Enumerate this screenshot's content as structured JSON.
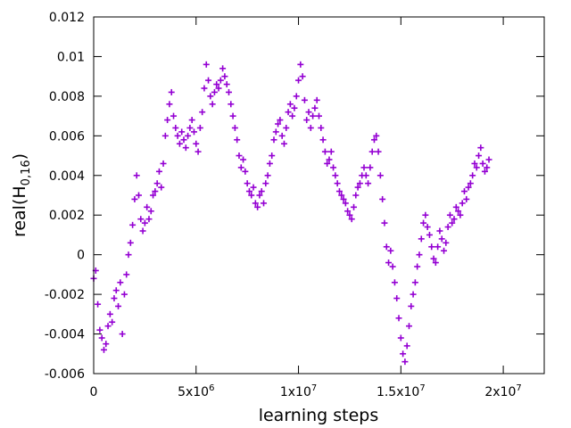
{
  "chart_data": {
    "type": "scatter",
    "title": "",
    "xlabel": "learning steps",
    "ylabel": {
      "main": "real(H",
      "subscript": "0,16",
      "close": ")"
    },
    "xlim": [
      0,
      22000000
    ],
    "ylim": [
      -0.006,
      0.012
    ],
    "x_ticks": [
      {
        "value": 0,
        "mantissa": "0",
        "exp": ""
      },
      {
        "value": 5000000,
        "mantissa": "5x10",
        "exp": "6"
      },
      {
        "value": 10000000,
        "mantissa": "1x10",
        "exp": "7"
      },
      {
        "value": 15000000,
        "mantissa": "1.5x10",
        "exp": "7"
      },
      {
        "value": 20000000,
        "mantissa": "2x10",
        "exp": "7"
      }
    ],
    "y_ticks": [
      {
        "value": -0.006,
        "label": "-0.006"
      },
      {
        "value": -0.004,
        "label": "-0.004"
      },
      {
        "value": -0.002,
        "label": "-0.002"
      },
      {
        "value": 0,
        "label": "0"
      },
      {
        "value": 0.002,
        "label": "0.002"
      },
      {
        "value": 0.004,
        "label": "0.004"
      },
      {
        "value": 0.006,
        "label": "0.006"
      },
      {
        "value": 0.008,
        "label": "0.008"
      },
      {
        "value": 0.01,
        "label": "0.01"
      },
      {
        "value": 0.012,
        "label": "0.012"
      }
    ],
    "grid": false,
    "marker": "plus",
    "series": [
      {
        "color": "#9400d3",
        "points": [
          [
            0,
            -0.0012
          ],
          [
            100000,
            -0.0008
          ],
          [
            200000,
            -0.0025
          ],
          [
            300000,
            -0.0038
          ],
          [
            400000,
            -0.0042
          ],
          [
            500000,
            -0.0048
          ],
          [
            600000,
            -0.0045
          ],
          [
            700000,
            -0.0036
          ],
          [
            800000,
            -0.003
          ],
          [
            900000,
            -0.0034
          ],
          [
            1000000,
            -0.0022
          ],
          [
            1100000,
            -0.0018
          ],
          [
            1200000,
            -0.0026
          ],
          [
            1300000,
            -0.0014
          ],
          [
            1400000,
            -0.004
          ],
          [
            1500000,
            -0.002
          ],
          [
            1600000,
            -0.001
          ],
          [
            1700000,
            0.0
          ],
          [
            1800000,
            0.0006
          ],
          [
            1900000,
            0.0015
          ],
          [
            2000000,
            0.0028
          ],
          [
            2100000,
            0.004
          ],
          [
            2200000,
            0.003
          ],
          [
            2300000,
            0.0018
          ],
          [
            2400000,
            0.0012
          ],
          [
            2500000,
            0.0016
          ],
          [
            2600000,
            0.0024
          ],
          [
            2700000,
            0.0018
          ],
          [
            2800000,
            0.0022
          ],
          [
            2900000,
            0.003
          ],
          [
            3000000,
            0.0032
          ],
          [
            3100000,
            0.0036
          ],
          [
            3200000,
            0.0042
          ],
          [
            3300000,
            0.0034
          ],
          [
            3400000,
            0.0046
          ],
          [
            3500000,
            0.006
          ],
          [
            3600000,
            0.0068
          ],
          [
            3700000,
            0.0076
          ],
          [
            3800000,
            0.0082
          ],
          [
            3900000,
            0.007
          ],
          [
            4000000,
            0.0064
          ],
          [
            4100000,
            0.006
          ],
          [
            4200000,
            0.0056
          ],
          [
            4300000,
            0.0062
          ],
          [
            4400000,
            0.0058
          ],
          [
            4500000,
            0.0054
          ],
          [
            4600000,
            0.006
          ],
          [
            4700000,
            0.0064
          ],
          [
            4800000,
            0.0068
          ],
          [
            4900000,
            0.0062
          ],
          [
            5000000,
            0.0056
          ],
          [
            5100000,
            0.0052
          ],
          [
            5200000,
            0.0064
          ],
          [
            5300000,
            0.0072
          ],
          [
            5400000,
            0.0084
          ],
          [
            5500000,
            0.0096
          ],
          [
            5600000,
            0.0088
          ],
          [
            5700000,
            0.008
          ],
          [
            5800000,
            0.0076
          ],
          [
            5900000,
            0.0082
          ],
          [
            6000000,
            0.0086
          ],
          [
            6100000,
            0.0084
          ],
          [
            6200000,
            0.0088
          ],
          [
            6300000,
            0.0094
          ],
          [
            6400000,
            0.009
          ],
          [
            6500000,
            0.0086
          ],
          [
            6600000,
            0.0082
          ],
          [
            6700000,
            0.0076
          ],
          [
            6800000,
            0.007
          ],
          [
            6900000,
            0.0064
          ],
          [
            7000000,
            0.0058
          ],
          [
            7100000,
            0.005
          ],
          [
            7200000,
            0.0044
          ],
          [
            7300000,
            0.0048
          ],
          [
            7400000,
            0.0042
          ],
          [
            7500000,
            0.0036
          ],
          [
            7600000,
            0.0032
          ],
          [
            7700000,
            0.003
          ],
          [
            7800000,
            0.0034
          ],
          [
            7900000,
            0.0026
          ],
          [
            8000000,
            0.0024
          ],
          [
            8100000,
            0.003
          ],
          [
            8200000,
            0.0032
          ],
          [
            8300000,
            0.0026
          ],
          [
            8400000,
            0.0036
          ],
          [
            8500000,
            0.004
          ],
          [
            8600000,
            0.0046
          ],
          [
            8700000,
            0.005
          ],
          [
            8800000,
            0.0058
          ],
          [
            8900000,
            0.0062
          ],
          [
            9000000,
            0.0066
          ],
          [
            9100000,
            0.0068
          ],
          [
            9200000,
            0.006
          ],
          [
            9300000,
            0.0056
          ],
          [
            9400000,
            0.0064
          ],
          [
            9500000,
            0.0072
          ],
          [
            9600000,
            0.0076
          ],
          [
            9700000,
            0.007
          ],
          [
            9800000,
            0.0074
          ],
          [
            9900000,
            0.008
          ],
          [
            10000000,
            0.0088
          ],
          [
            10100000,
            0.0096
          ],
          [
            10200000,
            0.009
          ],
          [
            10300000,
            0.0078
          ],
          [
            10400000,
            0.0068
          ],
          [
            10500000,
            0.0072
          ],
          [
            10600000,
            0.0064
          ],
          [
            10700000,
            0.007
          ],
          [
            10800000,
            0.0074
          ],
          [
            10900000,
            0.0078
          ],
          [
            11000000,
            0.007
          ],
          [
            11100000,
            0.0064
          ],
          [
            11200000,
            0.0058
          ],
          [
            11300000,
            0.0052
          ],
          [
            11400000,
            0.0046
          ],
          [
            11500000,
            0.0048
          ],
          [
            11600000,
            0.0052
          ],
          [
            11700000,
            0.0044
          ],
          [
            11800000,
            0.004
          ],
          [
            11900000,
            0.0036
          ],
          [
            12000000,
            0.0032
          ],
          [
            12100000,
            0.003
          ],
          [
            12200000,
            0.0028
          ],
          [
            12300000,
            0.0026
          ],
          [
            12400000,
            0.0022
          ],
          [
            12500000,
            0.002
          ],
          [
            12600000,
            0.0018
          ],
          [
            12700000,
            0.0024
          ],
          [
            12800000,
            0.003
          ],
          [
            12900000,
            0.0034
          ],
          [
            13000000,
            0.0036
          ],
          [
            13100000,
            0.004
          ],
          [
            13200000,
            0.0044
          ],
          [
            13300000,
            0.004
          ],
          [
            13400000,
            0.0036
          ],
          [
            13500000,
            0.0044
          ],
          [
            13600000,
            0.0052
          ],
          [
            13700000,
            0.0058
          ],
          [
            13800000,
            0.006
          ],
          [
            13900000,
            0.0052
          ],
          [
            14000000,
            0.004
          ],
          [
            14100000,
            0.0028
          ],
          [
            14200000,
            0.0016
          ],
          [
            14300000,
            0.0004
          ],
          [
            14400000,
            -0.0004
          ],
          [
            14500000,
            0.0002
          ],
          [
            14600000,
            -0.0006
          ],
          [
            14700000,
            -0.0014
          ],
          [
            14800000,
            -0.0022
          ],
          [
            14900000,
            -0.0032
          ],
          [
            15000000,
            -0.0042
          ],
          [
            15100000,
            -0.005
          ],
          [
            15200000,
            -0.0054
          ],
          [
            15300000,
            -0.0046
          ],
          [
            15400000,
            -0.0036
          ],
          [
            15500000,
            -0.0026
          ],
          [
            15600000,
            -0.002
          ],
          [
            15700000,
            -0.0014
          ],
          [
            15800000,
            -0.0006
          ],
          [
            15900000,
            0.0
          ],
          [
            16000000,
            0.0008
          ],
          [
            16100000,
            0.0016
          ],
          [
            16200000,
            0.002
          ],
          [
            16300000,
            0.0014
          ],
          [
            16400000,
            0.001
          ],
          [
            16500000,
            0.0004
          ],
          [
            16600000,
            -0.0002
          ],
          [
            16700000,
            -0.0004
          ],
          [
            16800000,
            0.0004
          ],
          [
            16900000,
            0.0012
          ],
          [
            17000000,
            0.0008
          ],
          [
            17100000,
            0.0002
          ],
          [
            17200000,
            0.0006
          ],
          [
            17300000,
            0.0014
          ],
          [
            17400000,
            0.002
          ],
          [
            17500000,
            0.0016
          ],
          [
            17600000,
            0.0018
          ],
          [
            17700000,
            0.0024
          ],
          [
            17800000,
            0.0022
          ],
          [
            17900000,
            0.002
          ],
          [
            18000000,
            0.0026
          ],
          [
            18100000,
            0.0032
          ],
          [
            18200000,
            0.0028
          ],
          [
            18300000,
            0.0034
          ],
          [
            18400000,
            0.0036
          ],
          [
            18500000,
            0.004
          ],
          [
            18600000,
            0.0046
          ],
          [
            18700000,
            0.0044
          ],
          [
            18800000,
            0.005
          ],
          [
            18900000,
            0.0054
          ],
          [
            19000000,
            0.0046
          ],
          [
            19100000,
            0.0042
          ],
          [
            19200000,
            0.0044
          ],
          [
            19300000,
            0.0048
          ]
        ]
      }
    ]
  }
}
